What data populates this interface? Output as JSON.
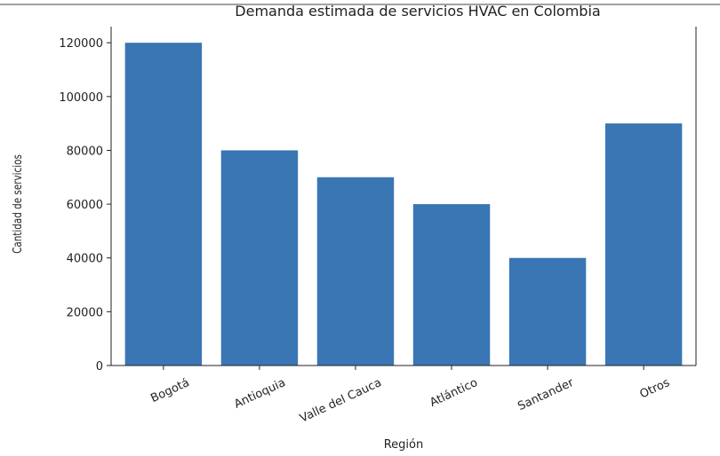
{
  "chart_data": {
    "type": "bar",
    "title": "Demanda estimada de servicios HVAC en Colombia",
    "x_label": "Región",
    "y_label": "Cantidad de servicios",
    "categories": [
      "Bogotá",
      "Antioquia",
      "Valle del Cauca",
      "Atlántico",
      "Santander",
      "Otros"
    ],
    "values": [
      120000,
      80000,
      70000,
      60000,
      40000,
      90000
    ],
    "color": "#3a76b4",
    "ylim": [
      0,
      126000
    ],
    "yticks": [
      0,
      20000,
      40000,
      60000,
      80000,
      100000,
      120000
    ],
    "grid": false
  }
}
